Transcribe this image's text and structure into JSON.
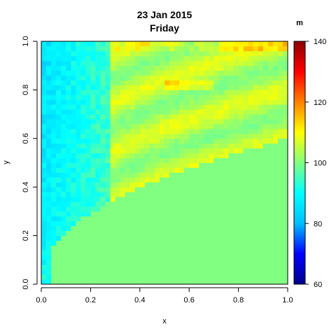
{
  "chart_data": {
    "type": "heatmap",
    "title": "23 Jan 2015",
    "subtitle": "Friday",
    "xlabel": "x",
    "ylabel": "y",
    "xlim": [
      0,
      1
    ],
    "ylim": [
      0,
      1
    ],
    "x_ticks": [
      0.0,
      0.2,
      0.4,
      0.6,
      0.8,
      1.0
    ],
    "y_ticks": [
      0.0,
      0.2,
      0.4,
      0.6,
      0.8,
      1.0
    ],
    "x_tick_labels": [
      "0.0",
      "0.2",
      "0.4",
      "0.6",
      "0.8",
      "1.0"
    ],
    "y_tick_labels": [
      "0.0",
      "0.2",
      "0.4",
      "0.6",
      "0.8",
      "1.0"
    ],
    "grid": false,
    "colorbar": {
      "label": "m",
      "range": [
        60,
        140
      ],
      "ticks": [
        60,
        80,
        100,
        120,
        140
      ],
      "tick_labels": [
        "60",
        "80",
        "100",
        "120",
        "140"
      ],
      "palette": [
        "#00008b",
        "#0000ff",
        "#00bfff",
        "#00ffff",
        "#80ff80",
        "#ffff00",
        "#ff8000",
        "#ff0000",
        "#8b0000"
      ]
    },
    "grid_resolution": [
      50,
      50
    ],
    "field_summary": {
      "baseline": 100,
      "left_band": {
        "x_range": [
          0.0,
          0.28
        ],
        "value_range": [
          80,
          95
        ]
      },
      "wave_crest_max": 120,
      "region_below_curve_y_eq_0_6x_pow_0_45": 100
    }
  }
}
